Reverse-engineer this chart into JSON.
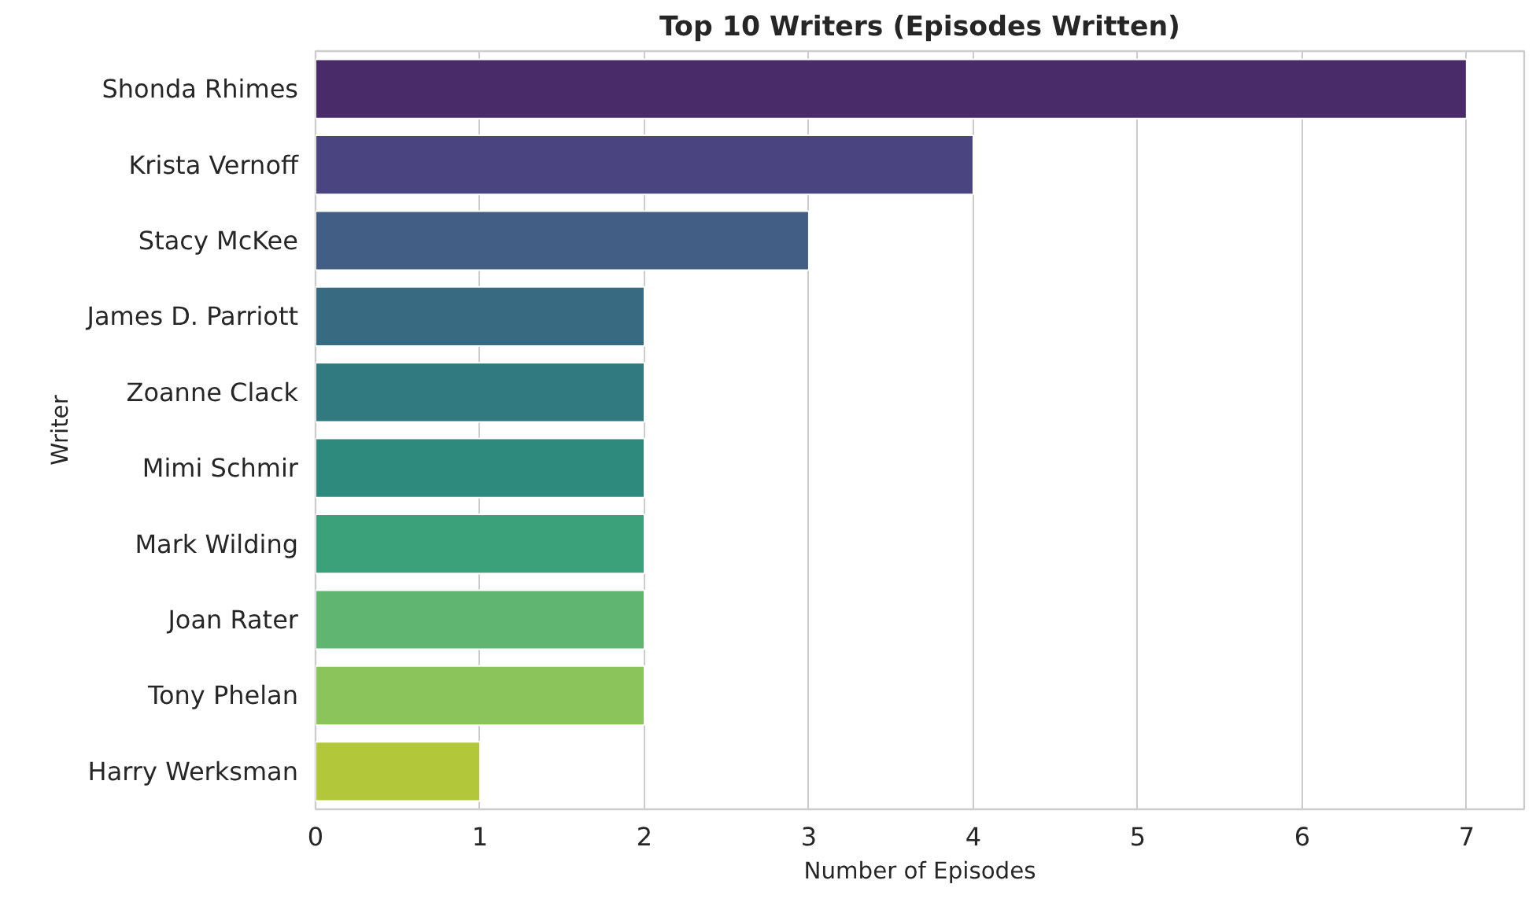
{
  "chart_data": {
    "type": "bar",
    "orientation": "horizontal",
    "title": "Top 10 Writers (Episodes Written)",
    "xlabel": "Number of Episodes",
    "ylabel": "Writer",
    "categories": [
      "Shonda Rhimes",
      "Krista Vernoff",
      "Stacy McKee",
      "James D. Parriott",
      "Zoanne Clack",
      "Mimi Schmir",
      "Mark Wilding",
      "Joan Rater",
      "Tony Phelan",
      "Harry Werksman"
    ],
    "values": [
      7,
      4,
      3,
      2,
      2,
      2,
      2,
      2,
      2,
      1
    ],
    "colors": [
      "#4a2b69",
      "#4a4580",
      "#425e84",
      "#386b82",
      "#307a80",
      "#2e8a7d",
      "#3aa17a",
      "#60b570",
      "#8bc45a",
      "#b2c73a"
    ],
    "xlim": [
      0,
      7.35
    ],
    "xticks": [
      0,
      1,
      2,
      3,
      4,
      5,
      6,
      7
    ],
    "grid": "x"
  }
}
